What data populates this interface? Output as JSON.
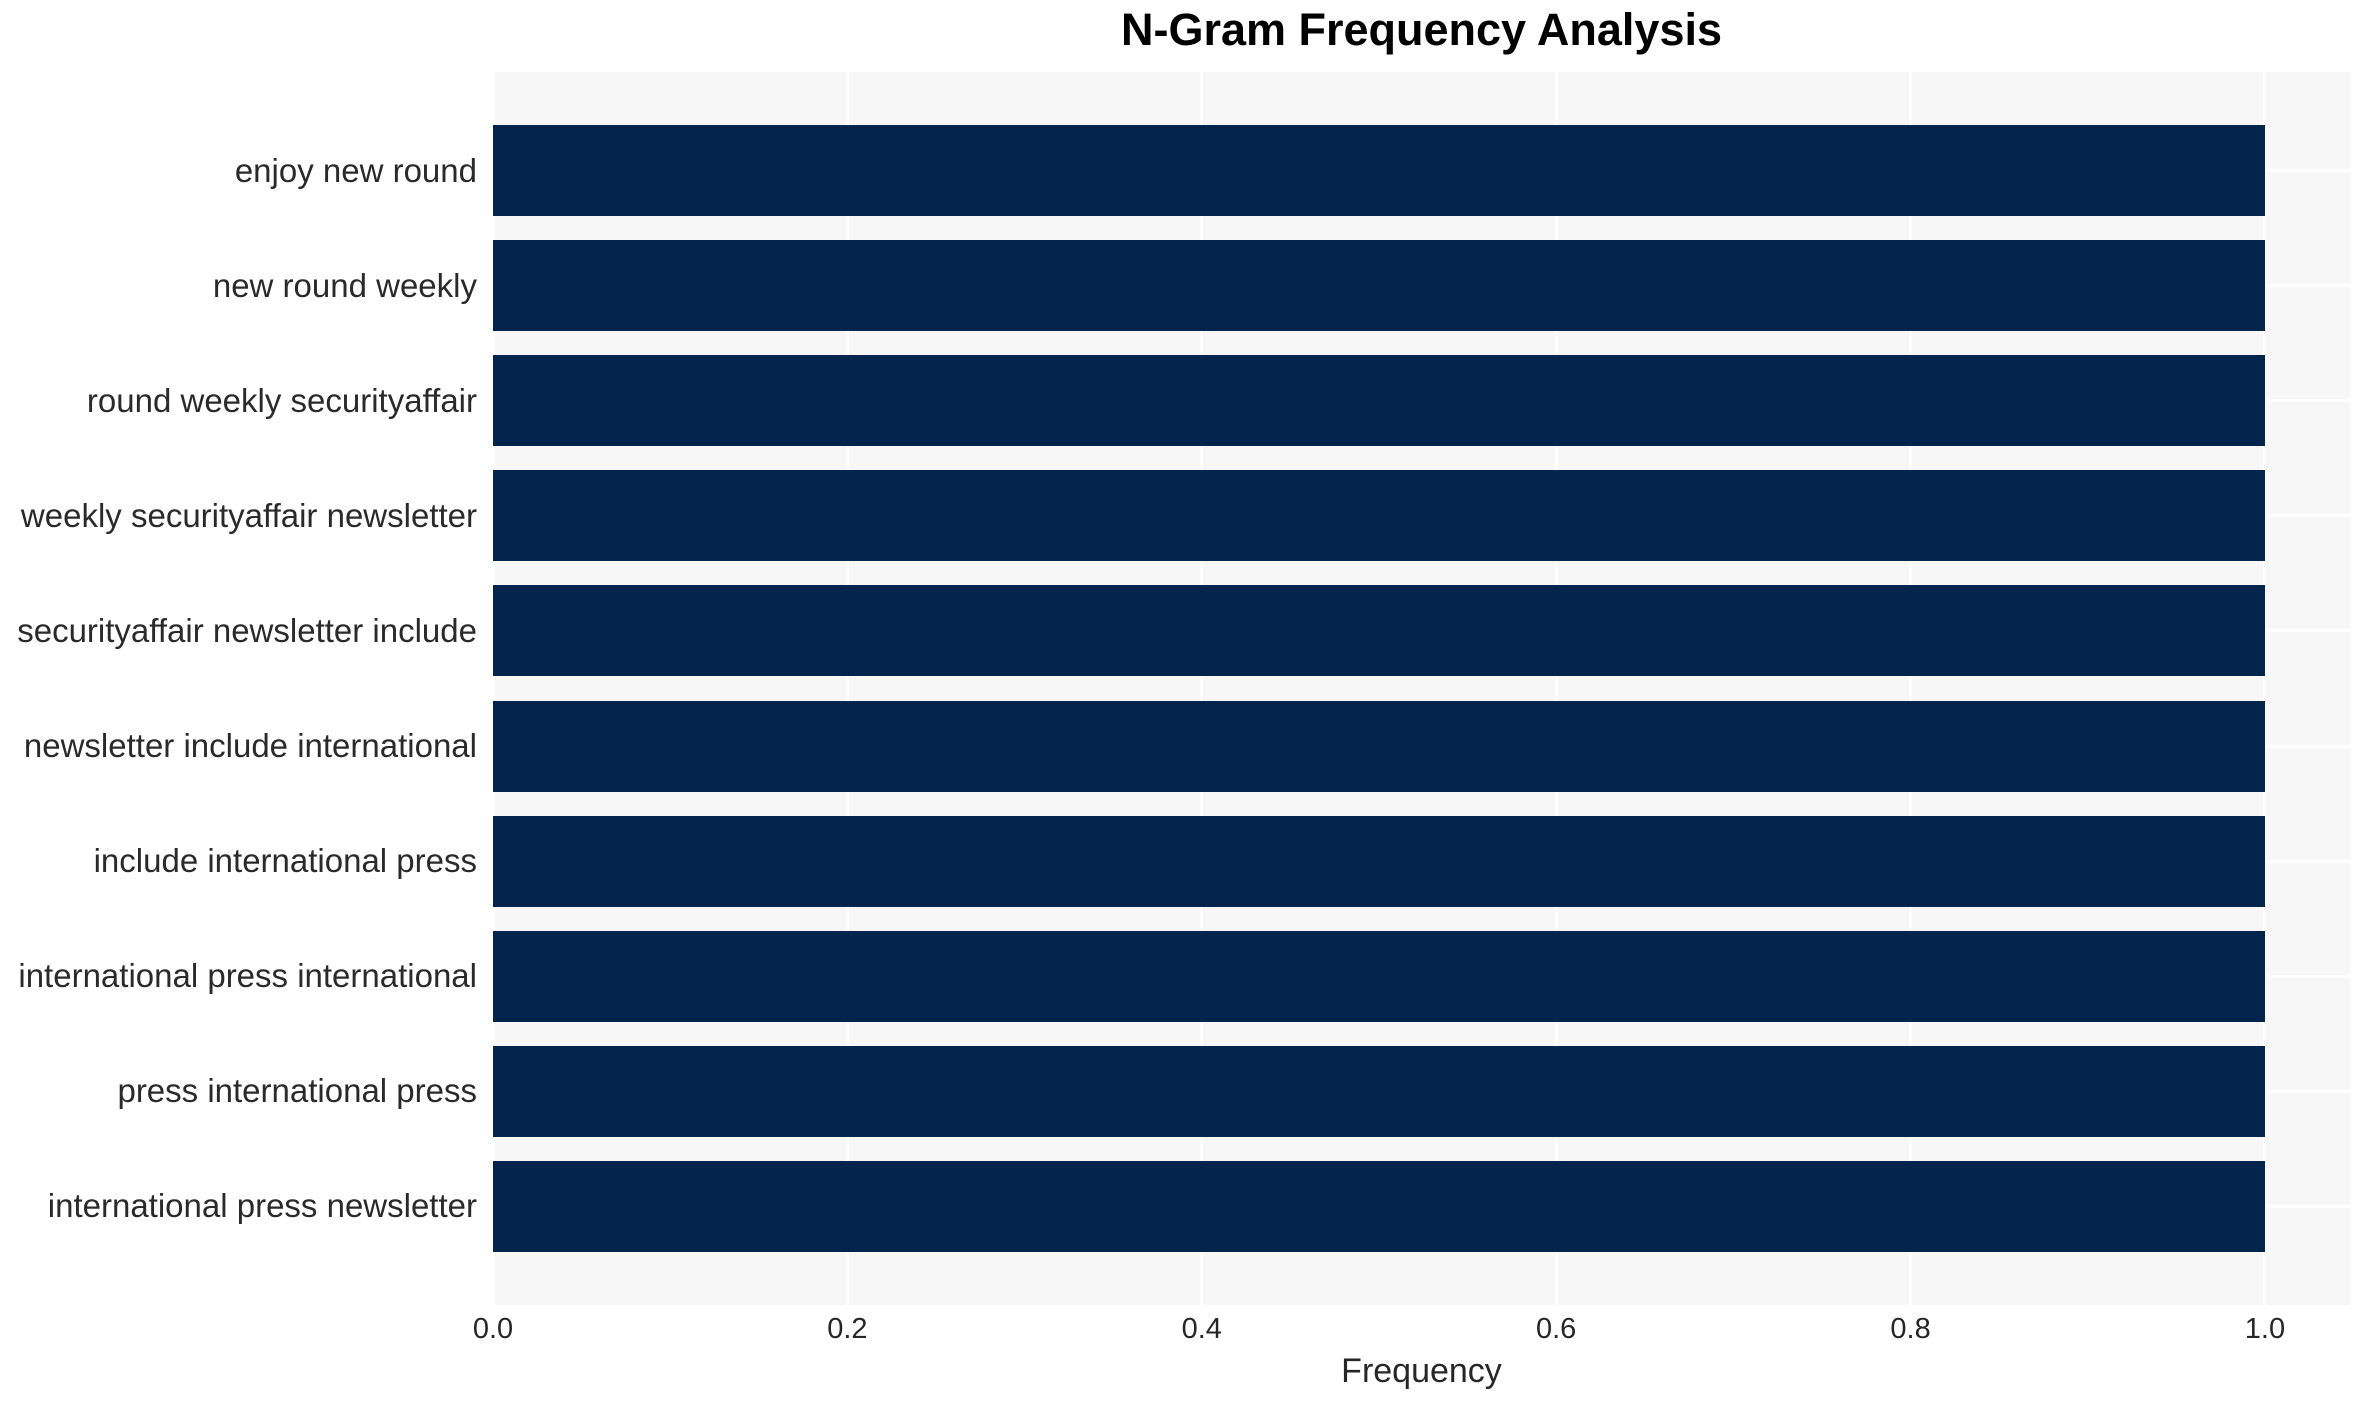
{
  "chart_data": {
    "type": "bar",
    "orientation": "horizontal",
    "title": "N-Gram Frequency Analysis",
    "xlabel": "Frequency",
    "ylabel": "",
    "categories": [
      "enjoy new round",
      "new round weekly",
      "round weekly securityaffair",
      "weekly securityaffair newsletter",
      "securityaffair newsletter include",
      "newsletter include international",
      "include international press",
      "international press international",
      "press international press",
      "international press newsletter"
    ],
    "values": [
      1.0,
      1.0,
      1.0,
      1.0,
      1.0,
      1.0,
      1.0,
      1.0,
      1.0,
      1.0
    ],
    "xlim": [
      0,
      1.048
    ],
    "xticks": [
      0.0,
      0.2,
      0.4,
      0.6,
      0.8,
      1.0
    ],
    "xtick_labels": [
      "0.0",
      "0.2",
      "0.4",
      "0.6",
      "0.8",
      "1.0"
    ],
    "grid": true,
    "legend": false,
    "colors": {
      "bar": "#02244d",
      "plot_background": "#f7f7f7",
      "gridline": "#ffffff",
      "tick_text": "#262626",
      "label_text": "#2a2a2a",
      "title_text": "#000000"
    }
  }
}
